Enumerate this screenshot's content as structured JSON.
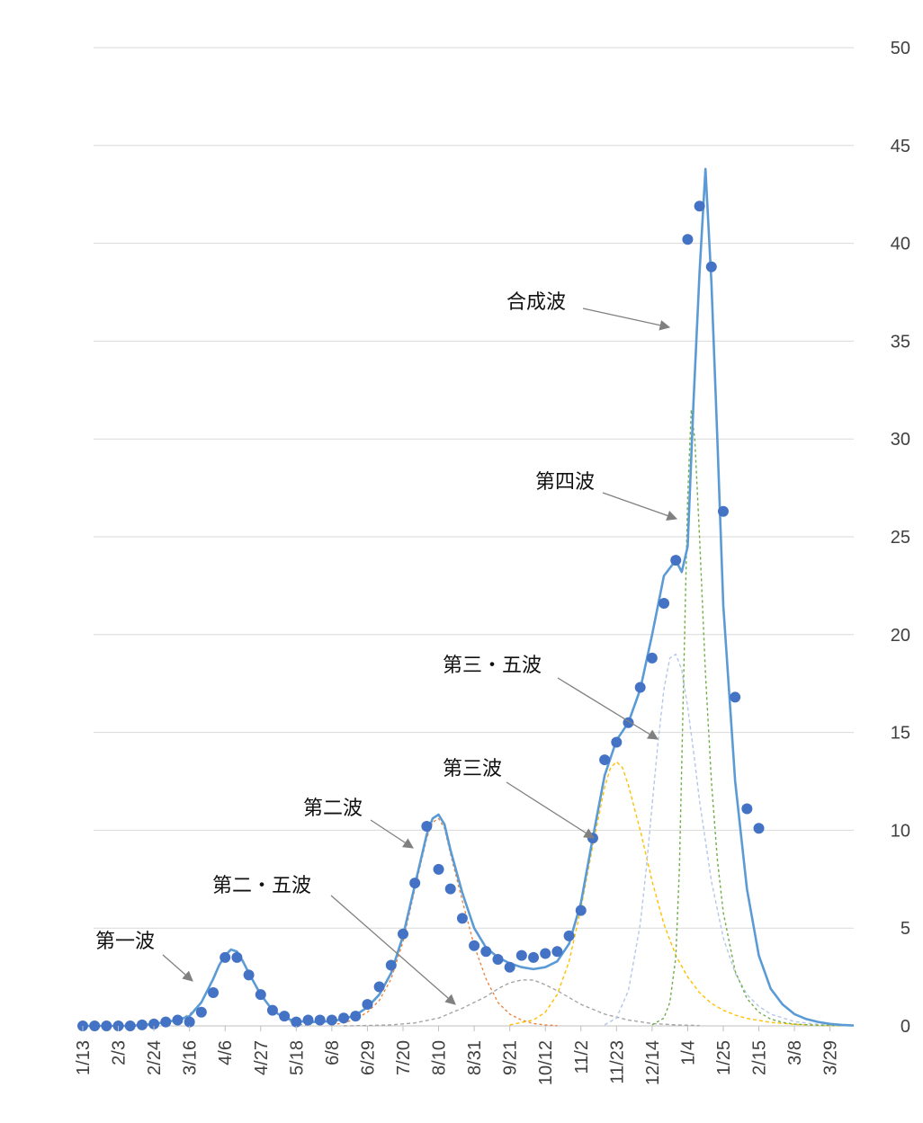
{
  "colors": {
    "grid": "#d9d9d9",
    "axis": "#bfbfbf",
    "tick_text": "#404040",
    "observed": "#4472c4",
    "composite": "#5b9bd5",
    "wave1": "#a5a5a5",
    "wave2": "#ed7d31",
    "wave2_5": "#a5a5a5",
    "wave3": "#ffc000",
    "wave3_5": "#b4c7e7",
    "wave4": "#70ad47",
    "arrow": "#808080"
  },
  "chart_data": {
    "type": "line",
    "title": "",
    "xlabel": "",
    "ylabel": "",
    "ylim": [
      0,
      50
    ],
    "xlim": [
      0,
      65
    ],
    "y_ticks": [
      "0",
      "5",
      "10",
      "15",
      "20",
      "25",
      "30",
      "35",
      "40",
      "45",
      "50"
    ],
    "y_axis_side": "right",
    "grid": true,
    "legend": "none",
    "x_ticks": [
      {
        "i": 0,
        "label": "1/13"
      },
      {
        "i": 3,
        "label": "2/3"
      },
      {
        "i": 6,
        "label": "2/24"
      },
      {
        "i": 9,
        "label": "3/16"
      },
      {
        "i": 12,
        "label": "4/6"
      },
      {
        "i": 15,
        "label": "4/27"
      },
      {
        "i": 18,
        "label": "5/18"
      },
      {
        "i": 21,
        "label": "6/8"
      },
      {
        "i": 24,
        "label": "6/29"
      },
      {
        "i": 27,
        "label": "7/20"
      },
      {
        "i": 30,
        "label": "8/10"
      },
      {
        "i": 33,
        "label": "8/31"
      },
      {
        "i": 36,
        "label": "9/21"
      },
      {
        "i": 39,
        "label": "10/12"
      },
      {
        "i": 42,
        "label": "11/2"
      },
      {
        "i": 45,
        "label": "11/23"
      },
      {
        "i": 48,
        "label": "12/14"
      },
      {
        "i": 51,
        "label": "1/4"
      },
      {
        "i": 54,
        "label": "1/25"
      },
      {
        "i": 57,
        "label": "2/15"
      },
      {
        "i": 60,
        "label": "3/8"
      },
      {
        "i": 63,
        "label": "3/29"
      }
    ],
    "observed_points": {
      "x": [
        0,
        1,
        2,
        3,
        4,
        5,
        6,
        7,
        8,
        9,
        10,
        11,
        12,
        13,
        14,
        15,
        16,
        17,
        18,
        19,
        20,
        21,
        22,
        23,
        24,
        25,
        26,
        27,
        28,
        29,
        30,
        31,
        32,
        33,
        34,
        35,
        36,
        37,
        38,
        39,
        40,
        41,
        42,
        43,
        44,
        45,
        46,
        47,
        48,
        49,
        50,
        51,
        52,
        53,
        54,
        55,
        56,
        57
      ],
      "y": [
        0,
        0,
        0,
        0,
        0,
        0.05,
        0.1,
        0.2,
        0.3,
        0.2,
        0.7,
        1.7,
        3.5,
        3.5,
        2.6,
        1.6,
        0.8,
        0.5,
        0.2,
        0.3,
        0.3,
        0.3,
        0.4,
        0.5,
        1.1,
        2.0,
        3.1,
        4.7,
        7.3,
        10.2,
        8.0,
        7.0,
        5.5,
        4.1,
        3.8,
        3.4,
        3.0,
        3.6,
        3.5,
        3.7,
        3.8,
        4.6,
        5.9,
        9.6,
        13.6,
        14.5,
        15.5,
        17.3,
        18.8,
        21.6,
        23.8,
        40.2,
        41.9,
        38.8,
        26.3,
        16.8,
        11.1,
        10.1
      ]
    },
    "series": [
      {
        "name": "合成波",
        "style": "solid",
        "x": [
          0,
          2,
          4,
          6,
          8,
          9,
          10,
          11,
          11.5,
          12,
          12.5,
          13,
          13.5,
          14,
          15,
          16,
          17,
          18,
          19,
          20,
          21,
          22,
          23,
          24,
          25,
          26,
          27,
          28,
          29,
          29.5,
          30,
          30.5,
          31,
          32,
          33,
          34,
          35,
          36,
          37,
          38,
          39,
          40,
          41,
          42,
          43,
          44,
          45,
          46,
          47,
          48,
          49,
          50,
          50.5,
          51,
          51.5,
          52,
          52.5,
          53,
          53.5,
          54,
          55,
          56,
          57,
          58,
          59,
          60,
          61,
          62,
          63,
          64,
          65
        ],
        "y": [
          0,
          0,
          0,
          0.1,
          0.3,
          0.5,
          1.2,
          2.4,
          3.1,
          3.6,
          3.9,
          3.8,
          3.3,
          2.7,
          1.6,
          0.8,
          0.4,
          0.25,
          0.2,
          0.2,
          0.25,
          0.35,
          0.55,
          0.95,
          1.6,
          2.7,
          4.6,
          7.2,
          9.8,
          10.6,
          10.8,
          10.3,
          9.0,
          6.8,
          5.0,
          4.0,
          3.5,
          3.2,
          3.0,
          2.9,
          3.0,
          3.3,
          4.2,
          6.3,
          9.6,
          12.8,
          14.6,
          15.5,
          17.2,
          20.0,
          23.0,
          23.8,
          23.2,
          24.5,
          32.0,
          38.5,
          43.8,
          38.0,
          30.0,
          21.5,
          12.5,
          7.0,
          3.6,
          1.9,
          1.1,
          0.6,
          0.35,
          0.2,
          0.1,
          0.05,
          0.02
        ]
      },
      {
        "name": "第一波",
        "style": "dashed",
        "x": [
          6,
          8,
          9,
          10,
          11,
          11.5,
          12,
          12.5,
          13,
          13.5,
          14,
          15,
          16,
          17,
          18,
          19
        ],
        "y": [
          0.05,
          0.3,
          0.6,
          1.2,
          2.4,
          3.1,
          3.6,
          3.9,
          3.8,
          3.3,
          2.7,
          1.6,
          0.8,
          0.35,
          0.1,
          0.02
        ]
      },
      {
        "name": "第二波",
        "style": "dashed",
        "x": [
          21,
          22,
          23,
          24,
          25,
          26,
          27,
          28,
          29,
          29.5,
          30,
          30.5,
          31,
          32,
          33,
          34,
          35,
          36,
          37,
          38,
          39,
          40
        ],
        "y": [
          0.05,
          0.15,
          0.35,
          0.7,
          1.3,
          2.4,
          4.3,
          7.0,
          9.6,
          10.4,
          10.6,
          10.1,
          8.8,
          6.4,
          4.1,
          2.4,
          1.2,
          0.6,
          0.3,
          0.12,
          0.05,
          0.01
        ]
      },
      {
        "name": "第二・五波",
        "style": "dashed",
        "x": [
          22,
          24,
          26,
          28,
          30,
          32,
          34,
          35,
          36,
          37,
          38,
          39,
          40,
          42,
          44,
          46,
          48,
          50,
          52
        ],
        "y": [
          0,
          0.02,
          0.05,
          0.15,
          0.4,
          0.9,
          1.5,
          1.9,
          2.2,
          2.35,
          2.35,
          2.1,
          1.8,
          1.1,
          0.6,
          0.3,
          0.12,
          0.05,
          0.02
        ]
      },
      {
        "name": "第三波",
        "style": "dashed",
        "x": [
          36,
          38,
          39,
          40,
          41,
          42,
          43,
          44,
          44.5,
          45,
          45.5,
          46,
          47,
          48,
          49,
          50,
          51,
          52,
          53,
          54,
          55,
          56,
          58,
          60,
          62,
          64
        ],
        "y": [
          0.05,
          0.3,
          0.7,
          1.6,
          3.3,
          6.0,
          9.2,
          12.2,
          13.2,
          13.5,
          13.2,
          12.3,
          10.0,
          7.4,
          5.2,
          3.6,
          2.5,
          1.7,
          1.15,
          0.8,
          0.55,
          0.38,
          0.18,
          0.08,
          0.03,
          0.01
        ]
      },
      {
        "name": "第三・五波",
        "style": "dashed",
        "x": [
          44,
          45,
          46,
          47,
          47.5,
          48,
          48.5,
          49,
          49.5,
          50,
          50.5,
          51,
          51.5,
          52,
          53,
          54,
          55,
          56,
          57,
          58,
          60,
          62,
          64
        ],
        "y": [
          0.05,
          0.4,
          1.8,
          5.2,
          8.0,
          11.3,
          14.5,
          17.2,
          18.8,
          19.0,
          18.2,
          16.3,
          14.0,
          11.5,
          7.4,
          4.5,
          2.7,
          1.6,
          1.0,
          0.6,
          0.22,
          0.08,
          0.02
        ]
      },
      {
        "name": "第四波",
        "style": "dashed",
        "x": [
          48,
          49,
          49.5,
          50,
          50.3,
          50.6,
          51,
          51.3,
          51.6,
          52,
          52.5,
          53,
          53.5,
          54,
          55,
          56,
          57,
          58,
          59,
          60,
          62,
          64
        ],
        "y": [
          0.05,
          0.4,
          1.2,
          3.5,
          8.0,
          16.0,
          27.0,
          31.5,
          30.0,
          25.0,
          18.0,
          12.5,
          8.5,
          5.8,
          2.8,
          1.4,
          0.7,
          0.35,
          0.18,
          0.09,
          0.03,
          0.01
        ]
      }
    ],
    "annotations": [
      {
        "text": "合成波"
      },
      {
        "text": "第四波"
      },
      {
        "text": "第三・五波"
      },
      {
        "text": "第三波"
      },
      {
        "text": "第二波"
      },
      {
        "text": "第二・五波"
      },
      {
        "text": "第一波"
      }
    ]
  }
}
